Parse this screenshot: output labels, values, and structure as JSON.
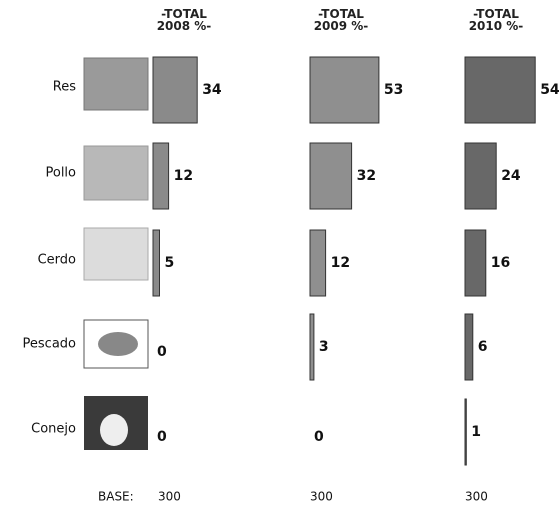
{
  "chart_data": {
    "type": "bar",
    "categories": [
      "Res",
      "Pollo",
      "Cerdo",
      "Pescado",
      "Conejo"
    ],
    "base_label": "BASE:",
    "series": [
      {
        "name": "-TOTAL 2008 %-",
        "color": "#8a8a8a",
        "values": [
          34,
          12,
          5,
          0,
          0
        ],
        "base": 300
      },
      {
        "name": "-TOTAL 2009 %-",
        "color": "#8f8f8f",
        "values": [
          53,
          32,
          12,
          3,
          0
        ],
        "base": 300
      },
      {
        "name": "-TOTAL 2010 %-",
        "color": "#686868",
        "values": [
          54,
          24,
          16,
          6,
          1
        ],
        "base": 300
      }
    ]
  }
}
